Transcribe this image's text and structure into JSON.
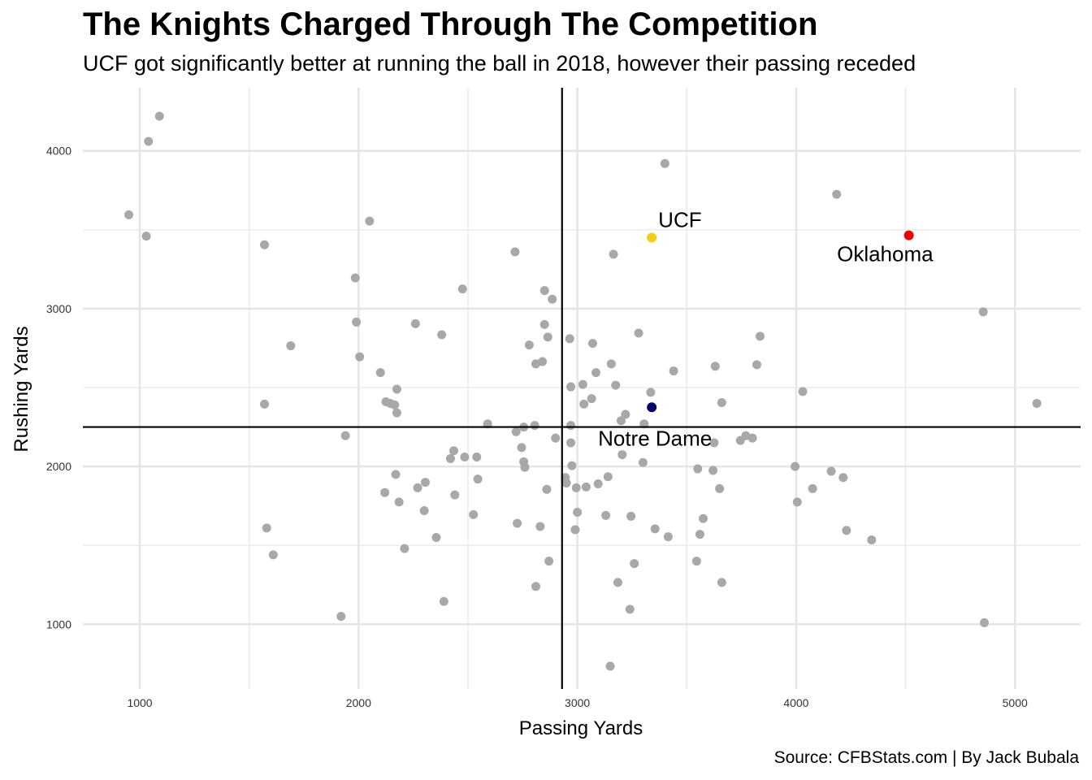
{
  "chart_data": {
    "type": "scatter",
    "title": "The Knights Charged Through The Competition",
    "subtitle": "UCF got significantly better at running the ball in 2018, however their passing receded",
    "caption": "Source: CFBStats.com | By Jack Bubala",
    "xlabel": "Passing Yards",
    "ylabel": "Rushing Yards",
    "xlim": [
      740,
      5300
    ],
    "ylim": [
      590,
      4400
    ],
    "xticks": [
      1000,
      2000,
      3000,
      4000,
      5000
    ],
    "yticks": [
      1000,
      2000,
      3000,
      4000
    ],
    "grid": true,
    "reference_lines": {
      "x": 2930,
      "y": 2250
    },
    "colors": {
      "default": "#a8a8a8",
      "UCF": "#f5cc17",
      "Oklahoma": "#ee0000",
      "Notre Dame": "#000066",
      "reference": "#000000"
    },
    "highlights": [
      {
        "label": "UCF",
        "x": 3340,
        "y": 3450,
        "color": "#f5cc17"
      },
      {
        "label": "Oklahoma",
        "x": 4515,
        "y": 3465,
        "color": "#ee0000"
      },
      {
        "label": "Notre Dame",
        "x": 3340,
        "y": 2375,
        "color": "#000066"
      }
    ],
    "points": [
      [
        950,
        3595
      ],
      [
        1030,
        3460
      ],
      [
        1040,
        4060
      ],
      [
        1090,
        4220
      ],
      [
        1570,
        3405
      ],
      [
        1570,
        2395
      ],
      [
        1580,
        1610
      ],
      [
        1610,
        1440
      ],
      [
        1690,
        2765
      ],
      [
        1920,
        1050
      ],
      [
        1940,
        2195
      ],
      [
        1985,
        3195
      ],
      [
        1990,
        2915
      ],
      [
        2005,
        2695
      ],
      [
        2050,
        3555
      ],
      [
        2100,
        2595
      ],
      [
        2120,
        1835
      ],
      [
        2125,
        2410
      ],
      [
        2145,
        2400
      ],
      [
        2165,
        2390
      ],
      [
        2170,
        1950
      ],
      [
        2175,
        2490
      ],
      [
        2175,
        2340
      ],
      [
        2185,
        1775
      ],
      [
        2210,
        1480
      ],
      [
        2260,
        2905
      ],
      [
        2270,
        1865
      ],
      [
        2300,
        1720
      ],
      [
        2305,
        1900
      ],
      [
        2355,
        1550
      ],
      [
        2380,
        2835
      ],
      [
        2390,
        1145
      ],
      [
        2420,
        2050
      ],
      [
        2435,
        2100
      ],
      [
        2440,
        1820
      ],
      [
        2475,
        3125
      ],
      [
        2485,
        2060
      ],
      [
        2525,
        1695
      ],
      [
        2540,
        2060
      ],
      [
        2545,
        1920
      ],
      [
        2590,
        2270
      ],
      [
        2715,
        3360
      ],
      [
        2720,
        2220
      ],
      [
        2725,
        1640
      ],
      [
        2745,
        2120
      ],
      [
        2755,
        2250
      ],
      [
        2755,
        2030
      ],
      [
        2760,
        1995
      ],
      [
        2780,
        2770
      ],
      [
        2805,
        2260
      ],
      [
        2810,
        1240
      ],
      [
        2810,
        2650
      ],
      [
        2830,
        1620
      ],
      [
        2840,
        2665
      ],
      [
        2850,
        3115
      ],
      [
        2850,
        2900
      ],
      [
        2860,
        1855
      ],
      [
        2865,
        2820
      ],
      [
        2870,
        1400
      ],
      [
        2885,
        3060
      ],
      [
        2900,
        2180
      ],
      [
        2945,
        1930
      ],
      [
        2950,
        1895
      ],
      [
        2965,
        2810
      ],
      [
        2970,
        2505
      ],
      [
        2970,
        2260
      ],
      [
        2970,
        2150
      ],
      [
        2975,
        2005
      ],
      [
        2990,
        1600
      ],
      [
        2995,
        1865
      ],
      [
        3000,
        1710
      ],
      [
        3025,
        2520
      ],
      [
        3030,
        2395
      ],
      [
        3040,
        1870
      ],
      [
        3065,
        2430
      ],
      [
        3070,
        2780
      ],
      [
        3085,
        2595
      ],
      [
        3095,
        1890
      ],
      [
        3130,
        1690
      ],
      [
        3140,
        1935
      ],
      [
        3150,
        735
      ],
      [
        3155,
        2650
      ],
      [
        3165,
        3345
      ],
      [
        3175,
        2515
      ],
      [
        3185,
        1265
      ],
      [
        3200,
        2290
      ],
      [
        3205,
        2075
      ],
      [
        3220,
        2330
      ],
      [
        3240,
        1095
      ],
      [
        3245,
        1685
      ],
      [
        3260,
        1385
      ],
      [
        3280,
        2845
      ],
      [
        3300,
        2025
      ],
      [
        3305,
        2270
      ],
      [
        3335,
        2470
      ],
      [
        3355,
        1605
      ],
      [
        3400,
        3920
      ],
      [
        3415,
        1555
      ],
      [
        3440,
        2605
      ],
      [
        3545,
        1400
      ],
      [
        3550,
        1985
      ],
      [
        3560,
        1570
      ],
      [
        3575,
        1670
      ],
      [
        3620,
        1975
      ],
      [
        3625,
        2150
      ],
      [
        3630,
        2635
      ],
      [
        3650,
        1860
      ],
      [
        3660,
        2405
      ],
      [
        3660,
        1265
      ],
      [
        3745,
        2165
      ],
      [
        3770,
        2195
      ],
      [
        3800,
        2180
      ],
      [
        3820,
        2645
      ],
      [
        3835,
        2825
      ],
      [
        3995,
        2000
      ],
      [
        4005,
        1775
      ],
      [
        4030,
        2475
      ],
      [
        4075,
        1860
      ],
      [
        4160,
        1970
      ],
      [
        4185,
        3725
      ],
      [
        4215,
        1930
      ],
      [
        4230,
        1595
      ],
      [
        4345,
        1535
      ],
      [
        4855,
        2980
      ],
      [
        4860,
        1010
      ],
      [
        5100,
        2400
      ]
    ]
  }
}
